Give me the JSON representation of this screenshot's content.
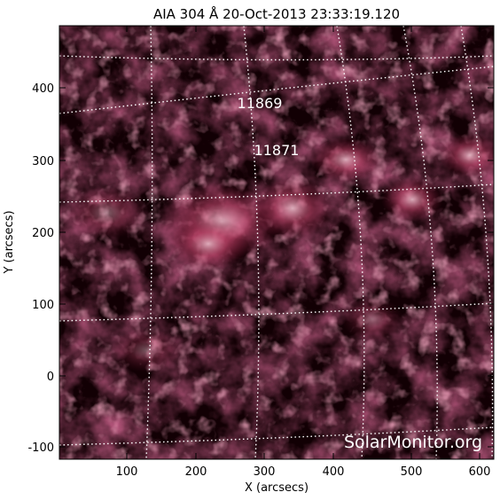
{
  "figure": {
    "title": "AIA 304 Å 20-Oct-2013 23:33:19.120",
    "x_axis_label": "X (arcsecs)",
    "y_axis_label": "Y (arcsecs)",
    "x_ticks": [
      "100",
      "200",
      "300",
      "400",
      "500",
      "600"
    ],
    "y_ticks": [
      "400",
      "300",
      "200",
      "100",
      "0",
      "-100"
    ],
    "active_regions": [
      {
        "label": "11869"
      },
      {
        "label": "11871"
      }
    ],
    "watermark": "SolarMonitor.org",
    "colors": {
      "image_dark": "#120004",
      "emission_mid": "#8c1b3c",
      "emission_bright": "#f0b8c8",
      "grid": "#ffffff"
    }
  }
}
